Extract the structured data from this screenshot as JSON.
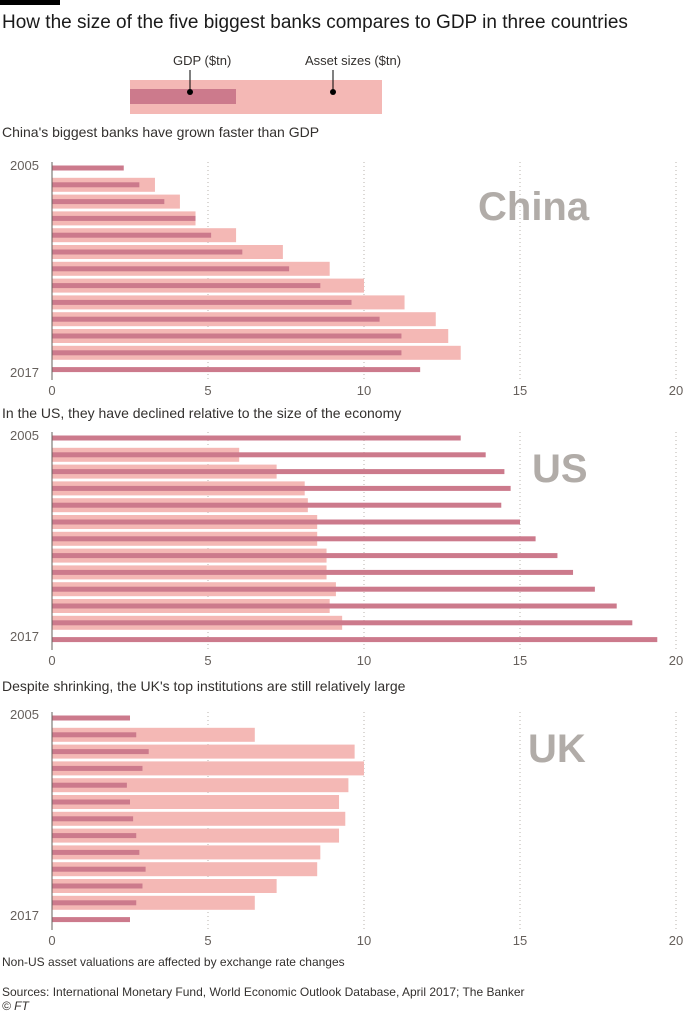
{
  "title": "How the size of the five biggest banks compares to GDP in three countries",
  "legend": {
    "gdp": "GDP ($tn)",
    "assets": "Asset sizes ($tn)"
  },
  "colors": {
    "assets": "#f4b8b5",
    "gdp": "#cc7a8c",
    "grid": "#b8b3ae",
    "axis": "#66605c",
    "country": "#b1aca8"
  },
  "chart_data": [
    {
      "type": "bar",
      "country": "China",
      "subtitle": "China's biggest banks have grown faster than GDP",
      "year_start": "2005",
      "year_end": "2017",
      "x": [
        2005,
        2006,
        2007,
        2008,
        2009,
        2010,
        2011,
        2012,
        2013,
        2014,
        2015,
        2016,
        2017
      ],
      "series": [
        {
          "name": "Asset sizes ($tn)",
          "values": [
            null,
            3.3,
            4.1,
            4.6,
            5.9,
            7.4,
            8.9,
            10,
            11.3,
            12.3,
            12.7,
            13.1,
            null
          ]
        },
        {
          "name": "GDP ($tn)",
          "values": [
            2.3,
            2.8,
            3.6,
            4.6,
            5.1,
            6.1,
            7.6,
            8.6,
            9.6,
            10.5,
            11.2,
            11.2,
            11.8
          ]
        }
      ],
      "xlim": [
        0,
        20
      ],
      "ticks": [
        "0",
        "5",
        "10",
        "15",
        "20"
      ]
    },
    {
      "type": "bar",
      "country": "US",
      "subtitle": "In the US, they have declined relative to the size of the economy",
      "year_start": "2005",
      "year_end": "2017",
      "x": [
        2005,
        2006,
        2007,
        2008,
        2009,
        2010,
        2011,
        2012,
        2013,
        2014,
        2015,
        2016,
        2017
      ],
      "series": [
        {
          "name": "Asset sizes ($tn)",
          "values": [
            null,
            6.0,
            7.2,
            8.1,
            8.2,
            8.5,
            8.5,
            8.8,
            8.8,
            9.1,
            8.9,
            9.3,
            null
          ]
        },
        {
          "name": "GDP ($tn)",
          "values": [
            13.1,
            13.9,
            14.5,
            14.7,
            14.4,
            15.0,
            15.5,
            16.2,
            16.7,
            17.4,
            18.1,
            18.6,
            19.4
          ]
        }
      ],
      "xlim": [
        0,
        20
      ],
      "ticks": [
        "0",
        "5",
        "10",
        "15",
        "20"
      ]
    },
    {
      "type": "bar",
      "country": "UK",
      "subtitle": "Despite shrinking, the UK's top institutions are still relatively large",
      "year_start": "2005",
      "year_end": "2017",
      "x": [
        2005,
        2006,
        2007,
        2008,
        2009,
        2010,
        2011,
        2012,
        2013,
        2014,
        2015,
        2016,
        2017
      ],
      "series": [
        {
          "name": "Asset sizes ($tn)",
          "values": [
            null,
            6.5,
            9.7,
            10.0,
            9.5,
            9.2,
            9.4,
            9.2,
            8.6,
            8.5,
            7.2,
            6.5,
            null
          ]
        },
        {
          "name": "GDP ($tn)",
          "values": [
            2.5,
            2.7,
            3.1,
            2.9,
            2.4,
            2.5,
            2.6,
            2.7,
            2.8,
            3.0,
            2.9,
            2.7,
            2.5
          ]
        }
      ],
      "xlim": [
        0,
        20
      ],
      "ticks": [
        "0",
        "5",
        "10",
        "15",
        "20"
      ]
    }
  ],
  "footnote": "Non-US asset valuations are affected by exchange rate changes",
  "sources": "Sources: International Monetary Fund, World Economic Outlook Database, April 2017; The Banker",
  "copyright": "© FT"
}
